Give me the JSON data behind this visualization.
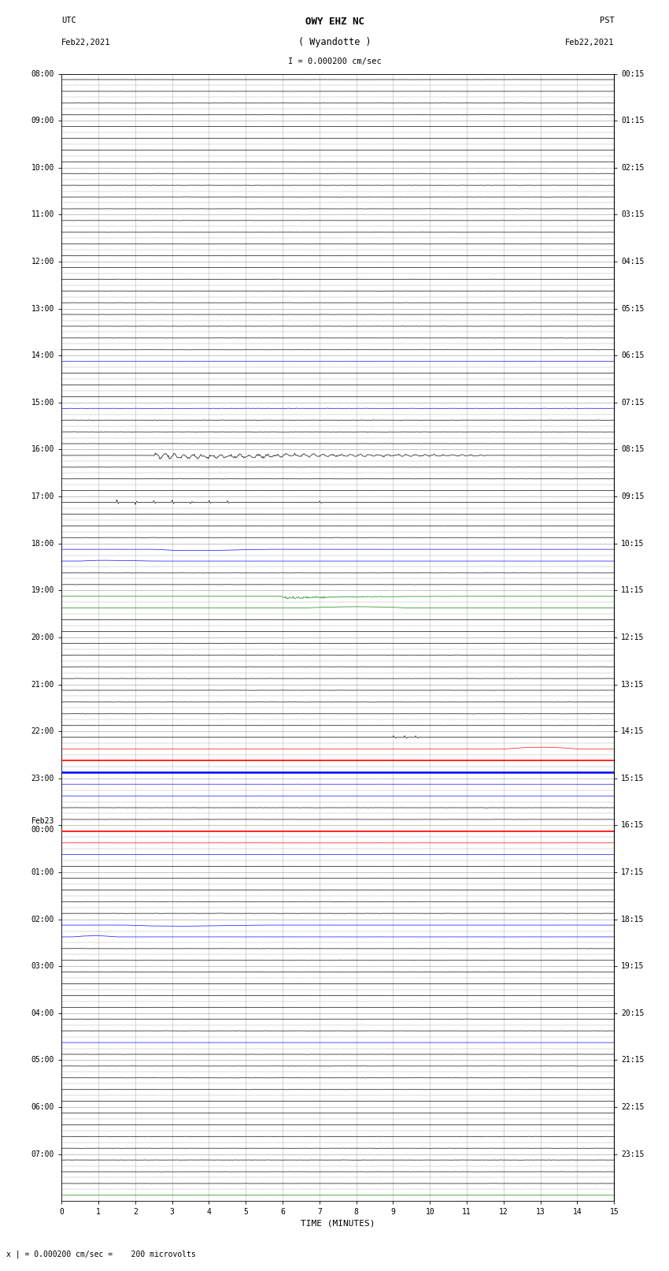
{
  "title_line1": "OWY EHZ NC",
  "title_line2": "( Wyandotte )",
  "title_scale": "I = 0.000200 cm/sec",
  "left_label_top": "UTC",
  "left_label_date": "Feb22,2021",
  "right_label_top": "PST",
  "right_label_date": "Feb22,2021",
  "xlabel": "TIME (MINUTES)",
  "footer": "x | = 0.000200 cm/sec =    200 microvolts",
  "bg_color": "#ffffff",
  "grid_color": "#aaaaaa",
  "hours_utc": [
    "08:00",
    "09:00",
    "10:00",
    "11:00",
    "12:00",
    "13:00",
    "14:00",
    "15:00",
    "16:00",
    "17:00",
    "18:00",
    "19:00",
    "20:00",
    "21:00",
    "22:00",
    "23:00",
    "Feb23\n00:00",
    "01:00",
    "02:00",
    "03:00",
    "04:00",
    "05:00",
    "06:00",
    "07:00"
  ],
  "hours_pst": [
    "00:15",
    "01:15",
    "02:15",
    "03:15",
    "04:15",
    "05:15",
    "06:15",
    "07:15",
    "08:15",
    "09:15",
    "10:15",
    "11:15",
    "12:15",
    "13:15",
    "14:15",
    "15:15",
    "16:15",
    "17:15",
    "18:15",
    "19:15",
    "20:15",
    "21:15",
    "22:15",
    "23:15"
  ]
}
